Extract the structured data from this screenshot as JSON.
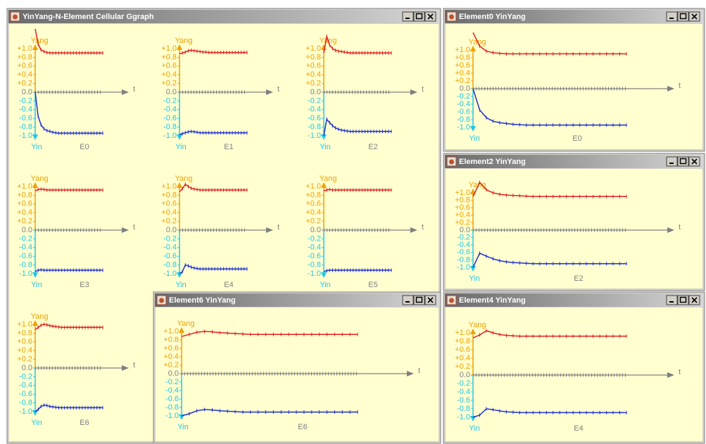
{
  "axis": {
    "yang": "Yang",
    "yin": "Yin",
    "t": "t",
    "yticks": [
      {
        "value": 1.0,
        "label": "+1.0"
      },
      {
        "value": 0.8,
        "label": "+0.8"
      },
      {
        "value": 0.6,
        "label": "+0.6"
      },
      {
        "value": 0.4,
        "label": "+0.4"
      },
      {
        "value": 0.2,
        "label": "+0.2"
      },
      {
        "value": 0,
        "label": "0.0"
      },
      {
        "value": -0.2,
        "label": "-0.2"
      },
      {
        "value": -0.4,
        "label": "-0.4"
      },
      {
        "value": -0.6,
        "label": "-0.6"
      },
      {
        "value": -0.8,
        "label": "-0.8"
      },
      {
        "value": -1.0,
        "label": "-1.0"
      }
    ]
  },
  "elements": [
    {
      "name": "E0",
      "yang": [
        1.45,
        1.1,
        0.97,
        0.93,
        0.91,
        0.9,
        0.9,
        0.9,
        0.9,
        0.9,
        0.9,
        0.9,
        0.9,
        0.9,
        0.9,
        0.9,
        0.9,
        0.9,
        0.9,
        0.9,
        0.9,
        0.9,
        0.9,
        0.9
      ],
      "yin": [
        0,
        -0.55,
        -0.75,
        -0.84,
        -0.88,
        -0.9,
        -0.92,
        -0.93,
        -0.94,
        -0.94,
        -0.94,
        -0.94,
        -0.94,
        -0.94,
        -0.94,
        -0.94,
        -0.94,
        -0.94,
        -0.94,
        -0.94,
        -0.94,
        -0.94,
        -0.94,
        -0.94
      ]
    },
    {
      "name": "E1",
      "yang": [
        0.88,
        0.9,
        0.92,
        0.95,
        0.96,
        0.95,
        0.94,
        0.93,
        0.92,
        0.92,
        0.91,
        0.91,
        0.91,
        0.91,
        0.91,
        0.91,
        0.91,
        0.91,
        0.91,
        0.91,
        0.91,
        0.91,
        0.91,
        0.91
      ],
      "yin": [
        -0.97,
        -0.95,
        -0.93,
        -0.91,
        -0.9,
        -0.91,
        -0.92,
        -0.93,
        -0.93,
        -0.93,
        -0.93,
        -0.93,
        -0.93,
        -0.93,
        -0.93,
        -0.93,
        -0.93,
        -0.93,
        -0.93,
        -0.93,
        -0.93,
        -0.93,
        -0.93,
        -0.93
      ]
    },
    {
      "name": "E2",
      "yang": [
        0.9,
        1.28,
        1.08,
        1.0,
        0.96,
        0.94,
        0.93,
        0.92,
        0.91,
        0.9,
        0.9,
        0.9,
        0.9,
        0.9,
        0.9,
        0.9,
        0.9,
        0.9,
        0.9,
        0.9,
        0.9,
        0.9,
        0.9,
        0.9
      ],
      "yin": [
        -1.0,
        -0.62,
        -0.7,
        -0.77,
        -0.82,
        -0.85,
        -0.87,
        -0.88,
        -0.89,
        -0.9,
        -0.9,
        -0.9,
        -0.9,
        -0.9,
        -0.9,
        -0.9,
        -0.9,
        -0.9,
        -0.9,
        -0.9,
        -0.9,
        -0.9,
        -0.9,
        -0.9
      ]
    },
    {
      "name": "E3",
      "yang": [
        0.9,
        0.93,
        0.94,
        0.93,
        0.92,
        0.92,
        0.92,
        0.92,
        0.92,
        0.92,
        0.92,
        0.92,
        0.92,
        0.92,
        0.92,
        0.92,
        0.92,
        0.92,
        0.92,
        0.92,
        0.92,
        0.92,
        0.92,
        0.92
      ],
      "yin": [
        -0.95,
        -0.92,
        -0.91,
        -0.92,
        -0.92,
        -0.92,
        -0.92,
        -0.92,
        -0.92,
        -0.92,
        -0.92,
        -0.92,
        -0.92,
        -0.92,
        -0.92,
        -0.92,
        -0.92,
        -0.92,
        -0.92,
        -0.92,
        -0.92,
        -0.92,
        -0.92,
        -0.92
      ]
    },
    {
      "name": "E4",
      "yang": [
        0.88,
        0.95,
        1.05,
        1.0,
        0.96,
        0.94,
        0.93,
        0.92,
        0.92,
        0.92,
        0.92,
        0.92,
        0.92,
        0.92,
        0.92,
        0.92,
        0.92,
        0.92,
        0.92,
        0.92,
        0.92,
        0.92,
        0.92,
        0.92
      ],
      "yin": [
        -1.0,
        -0.95,
        -0.8,
        -0.82,
        -0.85,
        -0.87,
        -0.88,
        -0.89,
        -0.89,
        -0.89,
        -0.89,
        -0.89,
        -0.89,
        -0.89,
        -0.89,
        -0.89,
        -0.89,
        -0.89,
        -0.89,
        -0.89,
        -0.89,
        -0.89,
        -0.89,
        -0.89
      ]
    },
    {
      "name": "E5",
      "yang": [
        0.9,
        0.92,
        0.93,
        0.92,
        0.92,
        0.92,
        0.92,
        0.92,
        0.92,
        0.92,
        0.92,
        0.92,
        0.92,
        0.92,
        0.92,
        0.92,
        0.92,
        0.92,
        0.92,
        0.92,
        0.92,
        0.92,
        0.92,
        0.92
      ],
      "yin": [
        -0.95,
        -0.93,
        -0.92,
        -0.92,
        -0.92,
        -0.92,
        -0.92,
        -0.92,
        -0.92,
        -0.92,
        -0.92,
        -0.92,
        -0.92,
        -0.92,
        -0.92,
        -0.92,
        -0.92,
        -0.92,
        -0.92,
        -0.92,
        -0.92,
        -0.92,
        -0.92,
        -0.92
      ]
    },
    {
      "name": "E6",
      "yang": [
        0.88,
        0.93,
        0.98,
        1.0,
        0.99,
        0.97,
        0.96,
        0.95,
        0.94,
        0.93,
        0.93,
        0.93,
        0.93,
        0.93,
        0.93,
        0.93,
        0.93,
        0.93,
        0.93,
        0.93,
        0.93,
        0.93,
        0.93,
        0.93
      ],
      "yin": [
        -1.0,
        -0.95,
        -0.88,
        -0.85,
        -0.86,
        -0.88,
        -0.89,
        -0.9,
        -0.91,
        -0.91,
        -0.91,
        -0.91,
        -0.91,
        -0.91,
        -0.91,
        -0.91,
        -0.91,
        -0.91,
        -0.91,
        -0.91,
        -0.91,
        -0.91,
        -0.91,
        -0.91
      ]
    }
  ],
  "windows": [
    {
      "title": "YinYang-N-Element Cellular Ggraph"
    },
    {
      "title": "Element0 YinYang"
    },
    {
      "title": "Element2 YinYang"
    },
    {
      "title": "Element6 YinYang"
    },
    {
      "title": "Element4 YinYang"
    }
  ]
}
